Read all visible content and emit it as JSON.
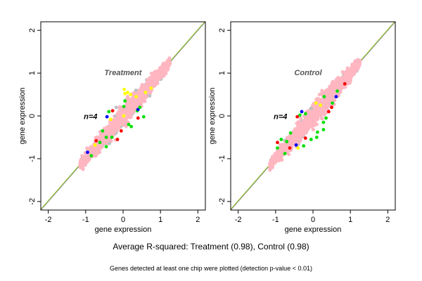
{
  "chart_data": [
    {
      "type": "scatter",
      "title": "Treatment",
      "annotation": "n=4",
      "xlabel": "gene expression",
      "ylabel": "gene expression",
      "xlim": [
        -2.2,
        2.2
      ],
      "ylim": [
        -2.2,
        2.2
      ],
      "xticks": [
        -2,
        -1,
        0,
        1,
        2
      ],
      "yticks": [
        -2,
        -1,
        0,
        1,
        2
      ],
      "grid": false,
      "reference_lines": [
        {
          "slope": 1,
          "intercept": 0,
          "color": "#808080"
        },
        {
          "slope": 1,
          "intercept": 0.02,
          "color": "#9acd32"
        }
      ],
      "point_colors": [
        "#ffb6c1",
        "#c0c0c0",
        "#00e000",
        "#ffff00",
        "#ff0000",
        "#0000ff"
      ],
      "cloud": {
        "x_range": [
          -1.15,
          1.25
        ],
        "spread": 0.18
      },
      "outliers": [
        {
          "x": 0.03,
          "y": 0.62,
          "color": "#ffff00"
        },
        {
          "x": 0.05,
          "y": 0.52,
          "color": "#ffff00"
        },
        {
          "x": 0.12,
          "y": 0.55,
          "color": "#ffff00"
        },
        {
          "x": 0.2,
          "y": 0.5,
          "color": "#ffff00"
        },
        {
          "x": 0.35,
          "y": 0.45,
          "color": "#ffff00"
        },
        {
          "x": 0.05,
          "y": 0.35,
          "color": "#00e000"
        },
        {
          "x": -0.28,
          "y": 0.12,
          "color": "#ff0000"
        },
        {
          "x": -0.38,
          "y": 0.1,
          "color": "#00e000"
        },
        {
          "x": -0.43,
          "y": -0.02,
          "color": "#0000ff"
        },
        {
          "x": -0.33,
          "y": -0.08,
          "color": "#ffff00"
        },
        {
          "x": -0.55,
          "y": -0.35,
          "color": "#00e000"
        },
        {
          "x": -0.72,
          "y": -0.58,
          "color": "#ff0000"
        },
        {
          "x": -0.75,
          "y": -0.68,
          "color": "#ffff00"
        },
        {
          "x": -0.62,
          "y": -0.62,
          "color": "#00e000"
        },
        {
          "x": -0.45,
          "y": -0.72,
          "color": "#00e000"
        },
        {
          "x": -0.3,
          "y": -0.5,
          "color": "#00e000"
        },
        {
          "x": -0.15,
          "y": -0.55,
          "color": "#ff0000"
        },
        {
          "x": 0.15,
          "y": -0.2,
          "color": "#00e000"
        },
        {
          "x": 0.22,
          "y": -0.25,
          "color": "#00e000"
        },
        {
          "x": 0.4,
          "y": -0.05,
          "color": "#ff0000"
        },
        {
          "x": 0.55,
          "y": -0.02,
          "color": "#00e000"
        },
        {
          "x": 0.38,
          "y": 0.12,
          "color": "#00e000"
        },
        {
          "x": 0.02,
          "y": 0.22,
          "color": "#00e000"
        },
        {
          "x": 0.4,
          "y": 0.15,
          "color": "#0000ff"
        },
        {
          "x": 0.45,
          "y": 0.2,
          "color": "#00e000"
        },
        {
          "x": -0.95,
          "y": -0.85,
          "color": "#0000ff"
        },
        {
          "x": -0.45,
          "y": -0.5,
          "color": "#00e000"
        },
        {
          "x": -0.85,
          "y": -0.93,
          "color": "#00e000"
        },
        {
          "x": 0.6,
          "y": 0.55,
          "color": "#ffff00"
        },
        {
          "x": 0.75,
          "y": 0.65,
          "color": "#ffff00"
        },
        {
          "x": -0.05,
          "y": -0.35,
          "color": "#ff0000"
        },
        {
          "x": 0.02,
          "y": 0.0,
          "color": "#ffff00"
        }
      ]
    },
    {
      "type": "scatter",
      "title": "Control",
      "annotation": "n=4",
      "xlabel": "gene expression",
      "ylabel": "gene expression",
      "xlim": [
        -2.2,
        2.2
      ],
      "ylim": [
        -2.2,
        2.2
      ],
      "xticks": [
        -2,
        -1,
        0,
        1,
        2
      ],
      "yticks": [
        -2,
        -1,
        0,
        1,
        2
      ],
      "grid": false,
      "reference_lines": [
        {
          "slope": 1,
          "intercept": 0,
          "color": "#808080"
        },
        {
          "slope": 1,
          "intercept": 0.02,
          "color": "#9acd32"
        }
      ],
      "point_colors": [
        "#ffb6c1",
        "#c0c0c0",
        "#00e000",
        "#ffff00",
        "#ff0000",
        "#0000ff"
      ],
      "cloud": {
        "x_range": [
          -1.15,
          1.25
        ],
        "spread": 0.18
      },
      "outliers": [
        {
          "x": -0.6,
          "y": -0.4,
          "color": "#00e000"
        },
        {
          "x": -0.85,
          "y": -0.55,
          "color": "#00e000"
        },
        {
          "x": -0.95,
          "y": -0.62,
          "color": "#ff0000"
        },
        {
          "x": -0.95,
          "y": -0.75,
          "color": "#00e000"
        },
        {
          "x": -0.62,
          "y": -0.75,
          "color": "#ff0000"
        },
        {
          "x": -0.45,
          "y": -0.68,
          "color": "#0000ff"
        },
        {
          "x": -0.4,
          "y": -0.75,
          "color": "#ffff00"
        },
        {
          "x": -0.05,
          "y": -0.55,
          "color": "#00e000"
        },
        {
          "x": -0.2,
          "y": -0.52,
          "color": "#ff0000"
        },
        {
          "x": 0.12,
          "y": -0.38,
          "color": "#00e000"
        },
        {
          "x": 0.28,
          "y": -0.32,
          "color": "#00e000"
        },
        {
          "x": 0.35,
          "y": -0.05,
          "color": "#00e000"
        },
        {
          "x": 0.28,
          "y": -0.15,
          "color": "#00e000"
        },
        {
          "x": 0.5,
          "y": 0.2,
          "color": "#ff0000"
        },
        {
          "x": 0.52,
          "y": 0.3,
          "color": "#00e000"
        },
        {
          "x": 0.62,
          "y": 0.45,
          "color": "#0000ff"
        },
        {
          "x": 0.3,
          "y": 0.45,
          "color": "#00e000"
        },
        {
          "x": 0.08,
          "y": 0.3,
          "color": "#ffff00"
        },
        {
          "x": -0.35,
          "y": 0.02,
          "color": "#00e000"
        },
        {
          "x": -0.3,
          "y": 0.1,
          "color": "#0000ff"
        },
        {
          "x": -0.42,
          "y": -0.02,
          "color": "#ff0000"
        },
        {
          "x": -0.2,
          "y": 0.05,
          "color": "#00e000"
        },
        {
          "x": 0.65,
          "y": 0.58,
          "color": "#00e000"
        },
        {
          "x": 0.85,
          "y": 0.75,
          "color": "#ff0000"
        },
        {
          "x": -0.75,
          "y": -0.88,
          "color": "#00e000"
        },
        {
          "x": -0.25,
          "y": -0.7,
          "color": "#00e000"
        },
        {
          "x": 0.42,
          "y": 0.1,
          "color": "#ff0000"
        },
        {
          "x": 0.1,
          "y": -0.5,
          "color": "#00e000"
        },
        {
          "x": -0.7,
          "y": -0.6,
          "color": "#00e000"
        },
        {
          "x": 0.2,
          "y": 0.25,
          "color": "#ffff00"
        }
      ]
    }
  ],
  "caption": {
    "main": "Average R-squared: Treatment (0.98), Control (0.98)",
    "sub": "Genes detected at least one chip were plotted (detection p-value < 0.01)"
  }
}
